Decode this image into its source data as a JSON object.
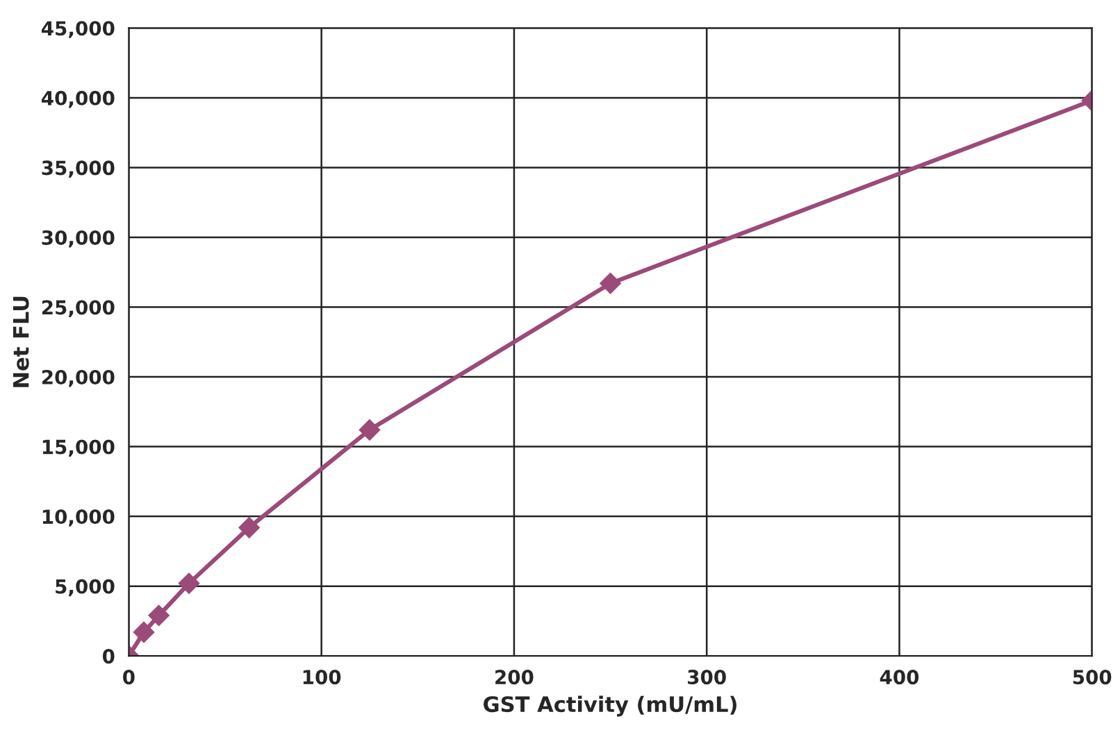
{
  "chart_data": {
    "type": "line",
    "xlabel": "GST Activity (mU/mL)",
    "ylabel": "Net FLU",
    "series": [
      {
        "color": "#9b4a7a",
        "x": [
          0,
          7.8,
          15.6,
          31.25,
          62.5,
          125,
          250,
          500
        ],
        "values": [
          0,
          1700,
          2900,
          5200,
          9200,
          16200,
          26700,
          39800
        ]
      }
    ],
    "xlim": [
      0,
      500
    ],
    "xticks": [
      0,
      100,
      200,
      300,
      400,
      500
    ],
    "ylim": [
      0,
      45000
    ],
    "yticks": [
      {
        "value": 0,
        "label": "0"
      },
      {
        "value": 5000,
        "label": "5,000"
      },
      {
        "value": 10000,
        "label": "10,000"
      },
      {
        "value": 15000,
        "label": "15,000"
      },
      {
        "value": 20000,
        "label": "20,000"
      },
      {
        "value": 25000,
        "label": "25,000"
      },
      {
        "value": 30000,
        "label": "30,000"
      },
      {
        "value": 35000,
        "label": "35,000"
      },
      {
        "value": 40000,
        "label": "40,000"
      },
      {
        "value": 45000,
        "label": "45,000"
      }
    ],
    "grid": true,
    "marker": "diamond",
    "line_style": "solid"
  }
}
